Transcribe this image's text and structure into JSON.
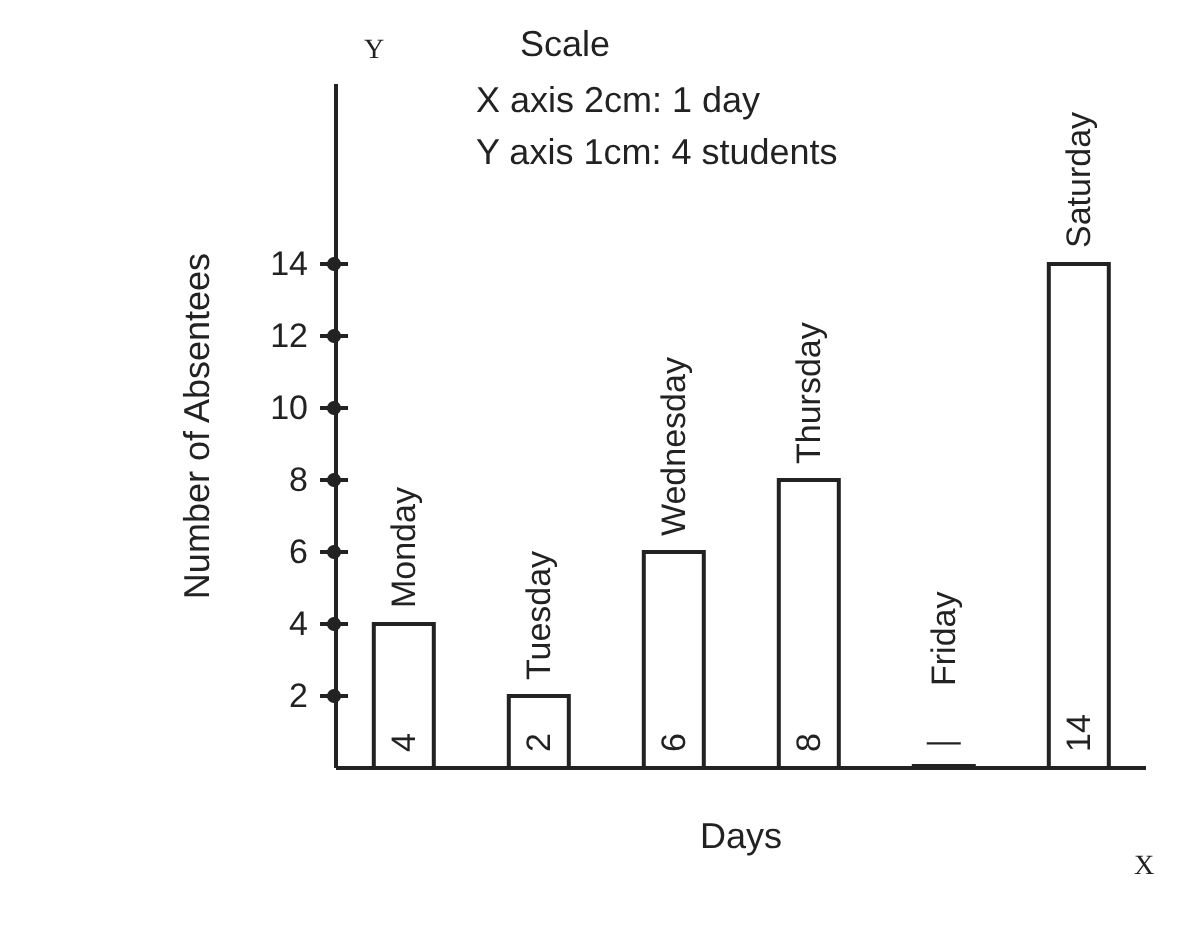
{
  "chart_data": {
    "type": "bar",
    "xlabel": "Days",
    "ylabel": "Number of Absentees",
    "categories": [
      "Monday",
      "Tuesday",
      "Wednesday",
      "Thursday",
      "Friday",
      "Saturday"
    ],
    "values": [
      4,
      2,
      6,
      8,
      0,
      14
    ],
    "value_labels": [
      "4",
      "2",
      "6",
      "8",
      "—",
      "14"
    ],
    "color": "#ffffff",
    "ylim": [
      0,
      19
    ],
    "yticks": [
      2,
      4,
      6,
      8,
      10,
      12,
      14
    ],
    "grid": false,
    "legend": false,
    "annotations": [
      "Y",
      "X",
      "Scale",
      "X axis 2cm: 1 day",
      "Y axis 1cm: 4 students"
    ]
  }
}
